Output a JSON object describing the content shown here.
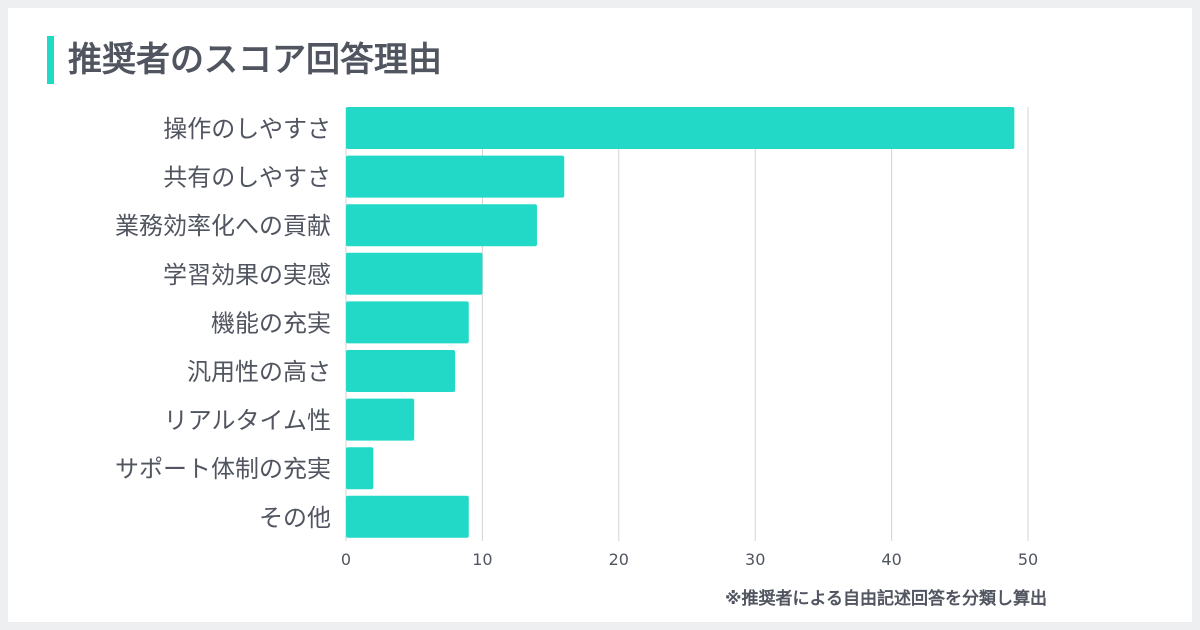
{
  "title": "推奨者のスコア回答理由",
  "note": "※推奨者による自由記述回答を分類し算出",
  "colors": {
    "bar": "#22d9c8",
    "grid": "#d3d3d3",
    "text": "#505560",
    "accent": "#22d9c8"
  },
  "chart_data": {
    "type": "bar",
    "orientation": "horizontal",
    "categories": [
      "操作のしやすさ",
      "共有のしやすさ",
      "業務効率化への貢献",
      "学習効果の実感",
      "機能の充実",
      "汎用性の高さ",
      "リアルタイム性",
      "サポート体制の充実",
      "その他"
    ],
    "values": [
      49,
      16,
      14,
      10,
      9,
      8,
      5,
      2,
      9
    ],
    "xlim": [
      0,
      50
    ],
    "xticks": [
      0,
      10,
      20,
      30,
      40,
      50
    ],
    "xtick_labels": [
      "0",
      "10",
      "20",
      "30",
      "40",
      "50"
    ],
    "grid": true,
    "legend": "none"
  }
}
